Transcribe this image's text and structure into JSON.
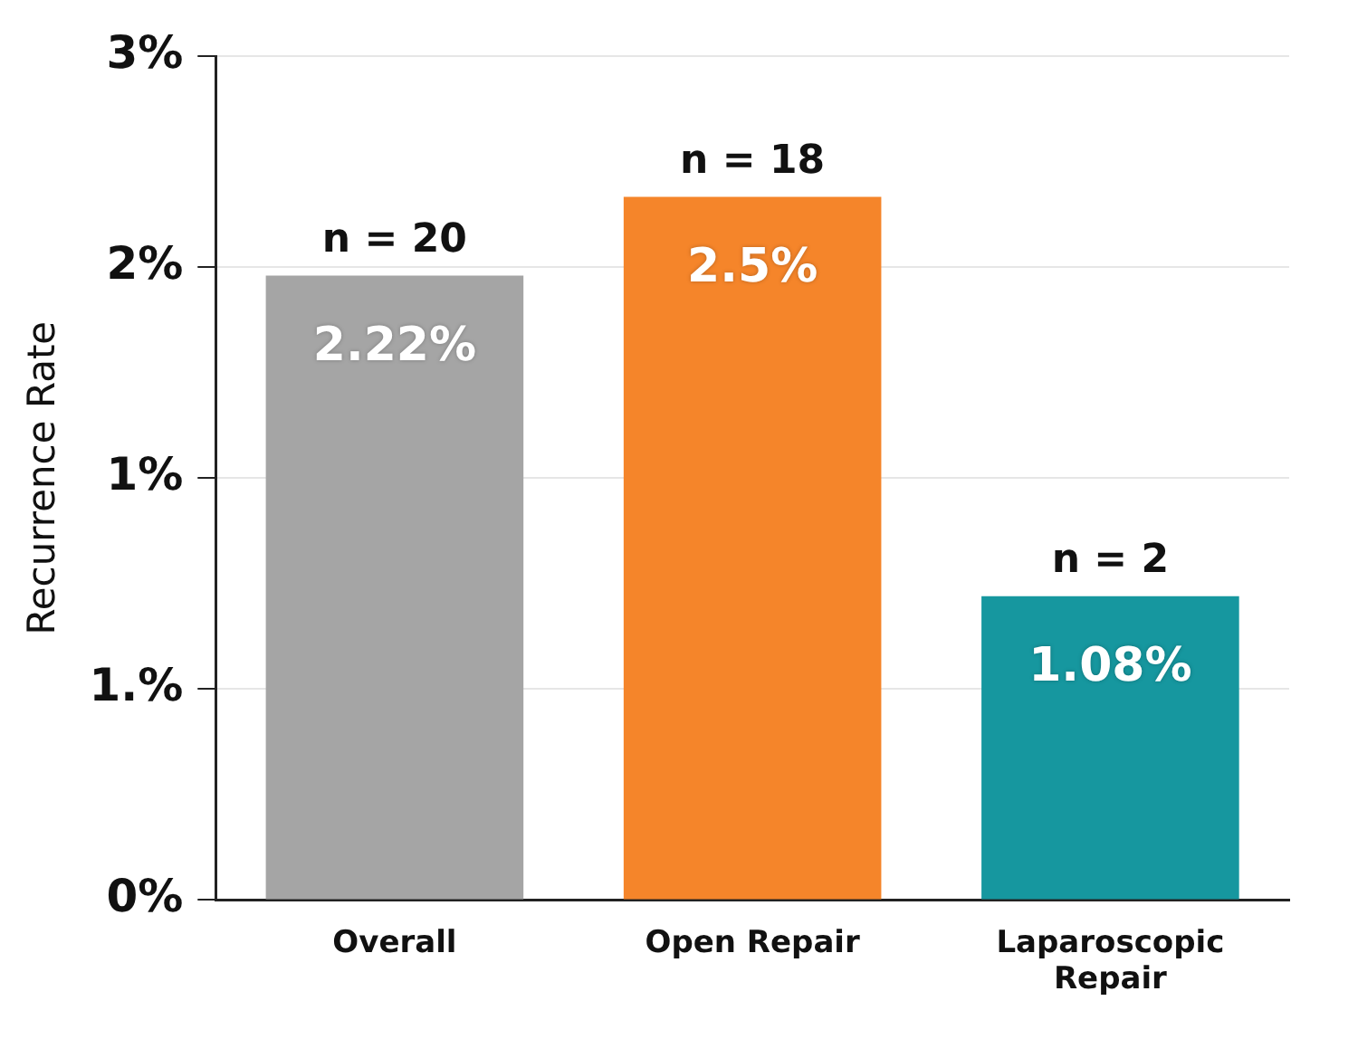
{
  "chart_data": {
    "type": "bar",
    "ylabel": "Recurrence Rate",
    "categories": [
      "Overall",
      "Open Repair",
      "Laparoscopic Repair"
    ],
    "values": [
      2.22,
      2.5,
      1.08
    ],
    "colors": [
      "#a5a5a5",
      "#f5852a",
      "#16979f"
    ],
    "value_labels": [
      "2.22%",
      "2.5%",
      "1.08%"
    ],
    "annotations": [
      {
        "text": "n = 20",
        "x": "Overall",
        "y": 2.22
      },
      {
        "text": "n = 18",
        "x": "Open Repair",
        "y": 2.5
      },
      {
        "text": "n = 2",
        "x": "Laparoscopic Repair",
        "y": 1.08
      }
    ],
    "ylim": [
      0,
      3
    ],
    "yticks": [
      {
        "value": 0,
        "label": "0%"
      },
      {
        "value": 0.75,
        "label": "1.%"
      },
      {
        "value": 1.5,
        "label": "1%"
      },
      {
        "value": 2.25,
        "label": "2%"
      },
      {
        "value": 3,
        "label": "3%"
      }
    ],
    "grid": "y",
    "legend": false
  }
}
